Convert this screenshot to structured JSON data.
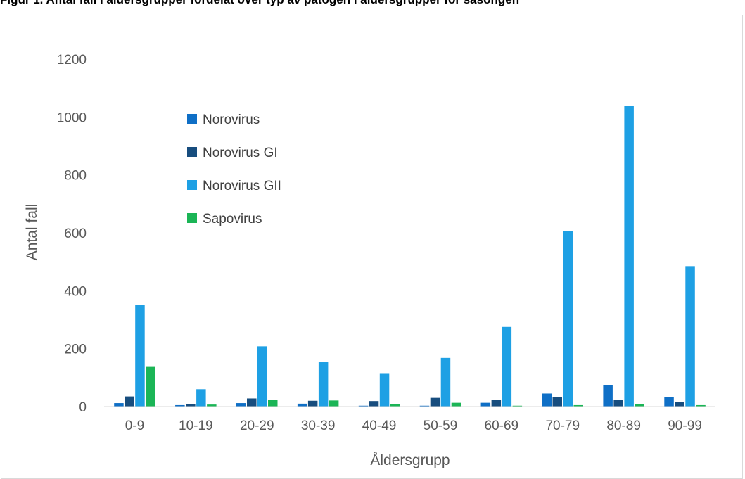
{
  "page_title_fragment": "Figur 1. Antal fall i åldersgrupper fördelat över typ av patogen i åldersgrupper för säsongen",
  "chart_data": {
    "type": "bar",
    "title": "",
    "xlabel": "Åldersgrupp",
    "ylabel": "Antal fall",
    "ylim": [
      0,
      1200
    ],
    "yticks": [
      0,
      200,
      400,
      600,
      800,
      1000,
      1200
    ],
    "grid": false,
    "legend_position": "upper-left inside plot",
    "categories": [
      "0-9",
      "10-19",
      "20-29",
      "30-39",
      "40-49",
      "50-59",
      "60-69",
      "70-79",
      "80-89",
      "90-99"
    ],
    "series": [
      {
        "name": "Norovirus",
        "color": "#0f6fc6",
        "values": [
          12,
          5,
          12,
          10,
          3,
          3,
          13,
          45,
          73,
          33
        ]
      },
      {
        "name": "Norovirus GI",
        "color": "#174d7e",
        "values": [
          35,
          9,
          28,
          20,
          19,
          30,
          22,
          33,
          24,
          15
        ]
      },
      {
        "name": "Norovirus GII",
        "color": "#1ea0e4",
        "values": [
          350,
          60,
          208,
          153,
          113,
          168,
          275,
          605,
          1038,
          485
        ]
      },
      {
        "name": "Sapovirus",
        "color": "#1bb556",
        "values": [
          137,
          7,
          24,
          21,
          8,
          13,
          3,
          5,
          8,
          5
        ]
      }
    ]
  }
}
